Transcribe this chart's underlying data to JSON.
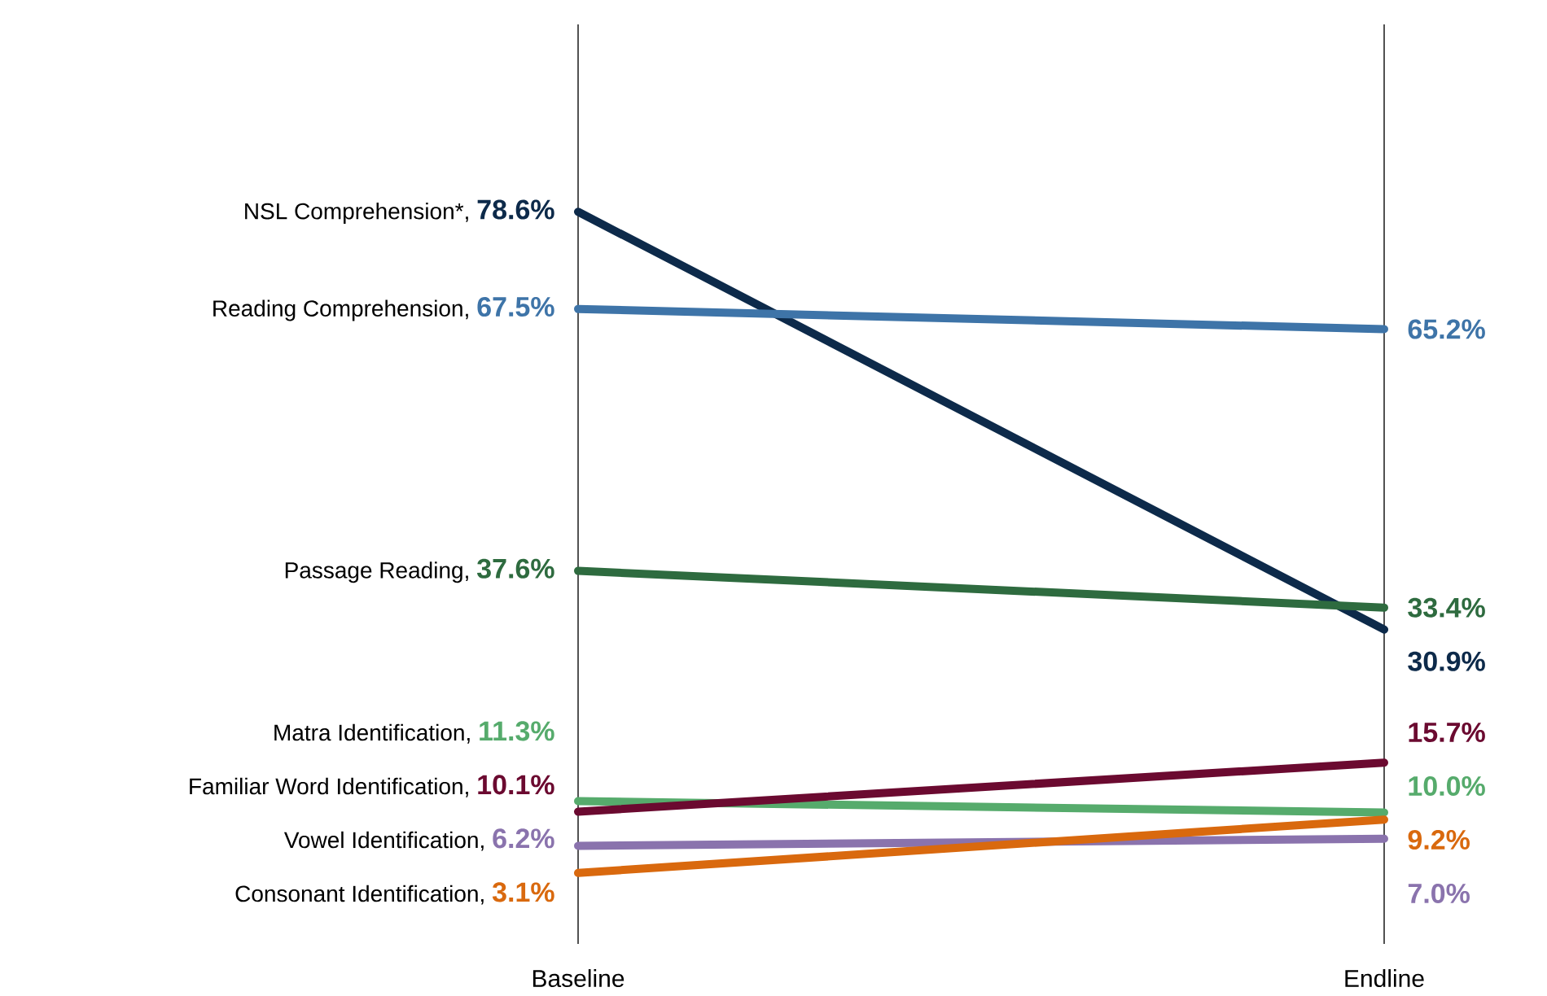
{
  "chart_data": {
    "type": "line",
    "categories": [
      "Baseline",
      "Endline"
    ],
    "ylim": [
      -5,
      100
    ],
    "grid": "x",
    "marker": "none",
    "line_style": "solid",
    "annotations": [
      "NSL Comprehension*,",
      "Reading Comprehension,",
      "Passage Reading,",
      "Matra Identification,",
      "Familiar Word Identification,",
      "Vowel Identification,",
      "Consonant Identification,"
    ],
    "series": [
      {
        "color": "#0d2a4a",
        "values": [
          78.6,
          30.9
        ],
        "value_labels": [
          "78.6%",
          "30.9%"
        ]
      },
      {
        "color": "#3e74a8",
        "values": [
          67.5,
          65.2
        ],
        "value_labels": [
          "67.5%",
          "65.2%"
        ]
      },
      {
        "color": "#2e6b3f",
        "values": [
          37.6,
          33.4
        ],
        "value_labels": [
          "37.6%",
          "33.4%"
        ]
      },
      {
        "color": "#56ab6c",
        "values": [
          11.3,
          10.0
        ],
        "value_labels": [
          "11.3%",
          "10.0%"
        ]
      },
      {
        "color": "#6b0a30",
        "values": [
          10.1,
          15.7
        ],
        "value_labels": [
          "10.1%",
          "15.7%"
        ]
      },
      {
        "color": "#8a73ad",
        "values": [
          6.2,
          7.0
        ],
        "value_labels": [
          "6.2%",
          "7.0%"
        ]
      },
      {
        "color": "#d9690e",
        "values": [
          3.1,
          9.2
        ],
        "value_labels": [
          "3.1%",
          "9.2%"
        ]
      }
    ]
  }
}
